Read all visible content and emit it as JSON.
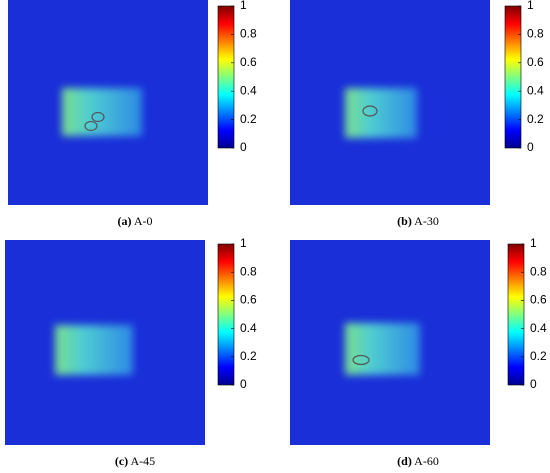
{
  "chart_data": [
    {
      "type": "heatmap",
      "caption_label": "(a)",
      "caption_text": "A-0",
      "clim": [
        0,
        1
      ],
      "cticks": [
        0,
        0.2,
        0.4,
        0.6,
        0.8,
        1
      ]
    },
    {
      "type": "heatmap",
      "caption_label": "(b)",
      "caption_text": "A-30",
      "clim": [
        0,
        1
      ],
      "cticks": [
        0,
        0.2,
        0.4,
        0.6,
        0.8,
        1
      ]
    },
    {
      "type": "heatmap",
      "caption_label": "(c)",
      "caption_text": "A-45",
      "clim": [
        0,
        1
      ],
      "cticks": [
        0,
        0.2,
        0.4,
        0.6,
        0.8,
        1
      ]
    },
    {
      "type": "heatmap",
      "caption_label": "(d)",
      "caption_text": "A-60",
      "clim": [
        0,
        1
      ],
      "cticks": [
        0,
        0.2,
        0.4,
        0.6,
        0.8,
        1
      ]
    }
  ]
}
